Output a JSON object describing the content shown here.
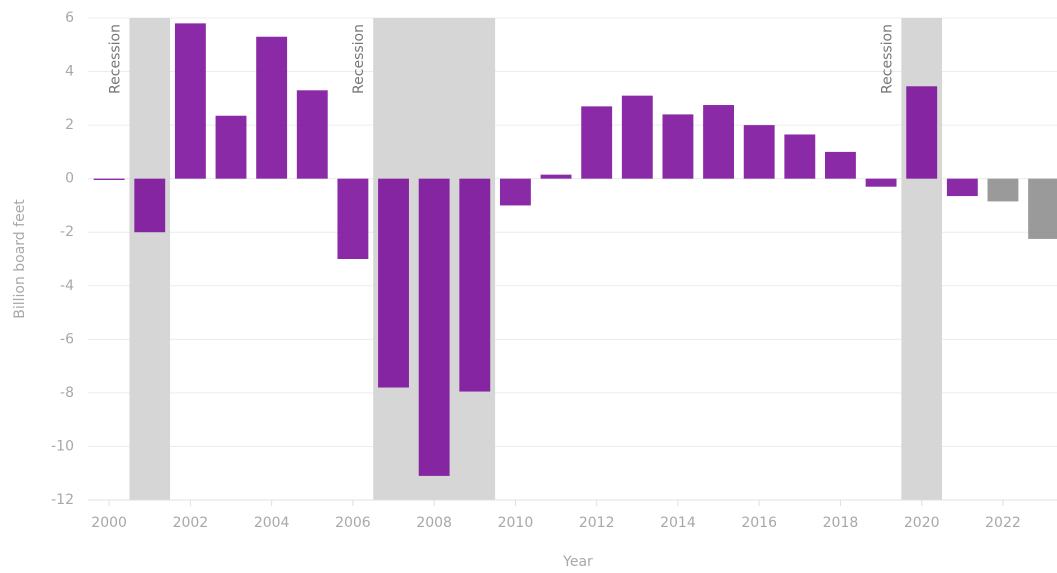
{
  "chart_data": {
    "type": "bar",
    "x": [
      2000,
      2001,
      2002,
      2003,
      2004,
      2005,
      2006,
      2007,
      2008,
      2009,
      2010,
      2011,
      2012,
      2013,
      2014,
      2015,
      2016,
      2017,
      2018,
      2019,
      2020,
      2021,
      2022,
      2023
    ],
    "values": [
      -0.05,
      -2.0,
      5.8,
      2.35,
      5.3,
      3.3,
      -3.0,
      -7.8,
      -11.1,
      -7.95,
      -1.0,
      0.15,
      2.7,
      3.1,
      2.4,
      2.75,
      2.0,
      1.65,
      1.0,
      -0.3,
      3.45,
      -0.65,
      -0.85,
      -2.25
    ],
    "colors": [
      "#7a0c9a",
      "#7a0c9a",
      "#7a0c9a",
      "#7a0c9a",
      "#7a0c9a",
      "#7a0c9a",
      "#7a0c9a",
      "#7a0c9a",
      "#7a0c9a",
      "#7a0c9a",
      "#7a0c9a",
      "#7a0c9a",
      "#7a0c9a",
      "#7a0c9a",
      "#7a0c9a",
      "#7a0c9a",
      "#7a0c9a",
      "#7a0c9a",
      "#7a0c9a",
      "#7a0c9a",
      "#7a0c9a",
      "#7a0c9a",
      "#8c8c8c",
      "#8c8c8c"
    ],
    "recessions": [
      {
        "start": 2001,
        "end": 2001,
        "label": "Recession"
      },
      {
        "start": 2007,
        "end": 2009,
        "label": "Recession"
      },
      {
        "start": 2020,
        "end": 2020,
        "label": "Recession"
      }
    ],
    "xlabel": "Year",
    "ylabel": "Billion board feet",
    "xlim": [
      1999.48,
      2023.33
    ],
    "xticks": [
      2000,
      2002,
      2004,
      2006,
      2008,
      2010,
      2012,
      2014,
      2016,
      2018,
      2020,
      2022
    ],
    "ylim": [
      -12,
      6
    ],
    "yticks": [
      -12,
      -10,
      -8,
      -6,
      -4,
      -2,
      0,
      2,
      4,
      6
    ],
    "grid": true
  }
}
